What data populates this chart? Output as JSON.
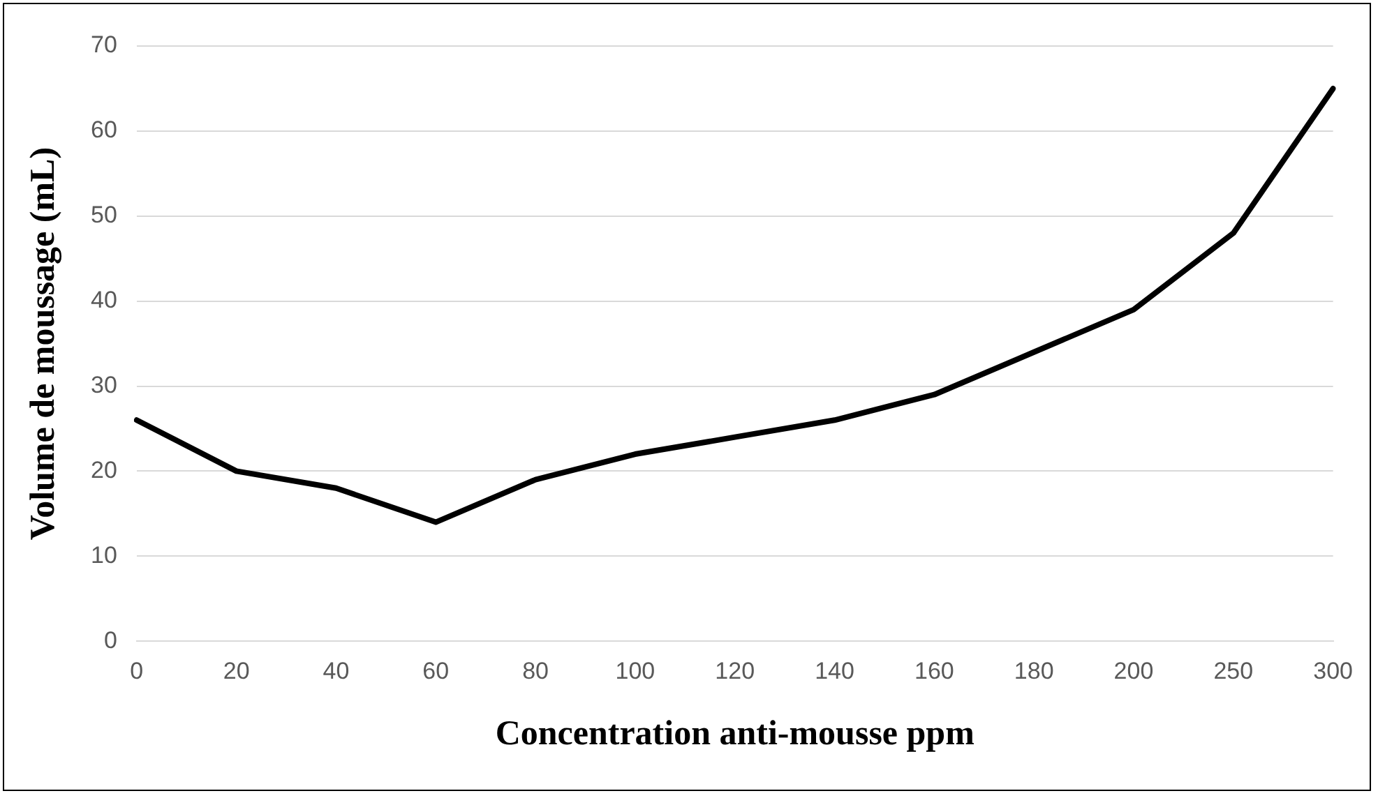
{
  "chart_data": {
    "type": "line",
    "xlabel": "Concentration anti-mousse ppm",
    "ylabel": "Volume de moussage (mL)",
    "categories": [
      "0",
      "20",
      "40",
      "60",
      "80",
      "100",
      "120",
      "140",
      "160",
      "180",
      "200",
      "250",
      "300"
    ],
    "series": [
      {
        "color": "#000000",
        "values": [
          26,
          20,
          18,
          14,
          19,
          22,
          24,
          26,
          29,
          34,
          39,
          48,
          65
        ]
      }
    ],
    "ylim": [
      0,
      70
    ],
    "yticks": [
      0,
      10,
      20,
      30,
      40,
      50,
      60,
      70
    ],
    "grid": "y",
    "legend": false,
    "marker": "none",
    "line_style": "solid"
  }
}
